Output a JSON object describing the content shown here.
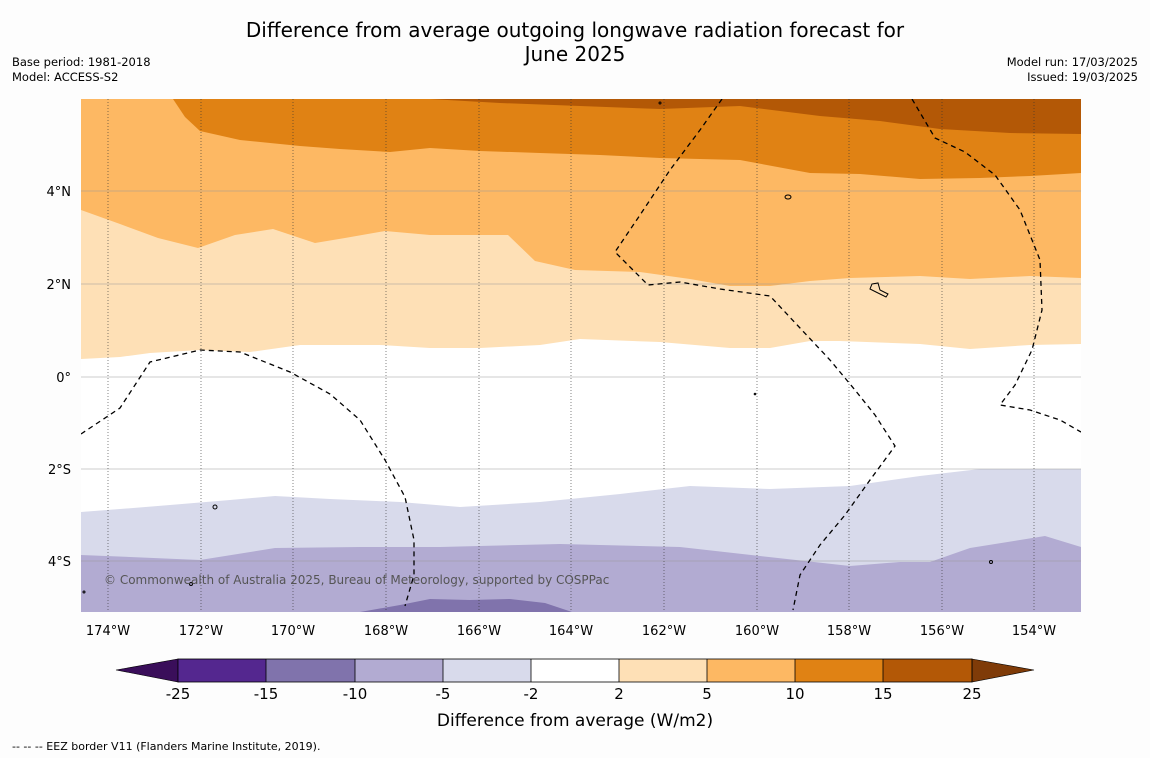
{
  "title_line1": "Difference from average outgoing longwave radiation forecast for",
  "title_line2": "June 2025",
  "meta_left": {
    "base_period": "Base period: 1981-2018",
    "model": "Model: ACCESS-S2"
  },
  "meta_right": {
    "model_run": "Model run: 17/03/2025",
    "issued": "Issued: 19/03/2025"
  },
  "map": {
    "lat_labels": [
      "4°N",
      "2°N",
      "0°",
      "2°S",
      "4°S"
    ],
    "lon_labels": [
      "174°W",
      "172°W",
      "170°W",
      "168°W",
      "166°W",
      "164°W",
      "162°W",
      "160°W",
      "158°W",
      "156°W",
      "154°W"
    ],
    "copyright": "© Commonwealth of Australia 2025, Bureau of Meteorology, supported by COSPPac"
  },
  "colorbar": {
    "tick_labels": [
      "-25",
      "-15",
      "-10",
      "-5",
      "-2",
      "2",
      "5",
      "10",
      "15",
      "25"
    ],
    "label": "Difference from average (W/m2)",
    "colors": [
      "#3a0e5a",
      "#54278f",
      "#8073ac",
      "#b2abd2",
      "#d8daeb",
      "#ffffff",
      "#fee0b6",
      "#fdb863",
      "#e08214",
      "#b35806",
      "#7f3b08"
    ]
  },
  "footer": "-- -- -- EEZ border V11 (Flanders Marine Institute, 2019)."
}
